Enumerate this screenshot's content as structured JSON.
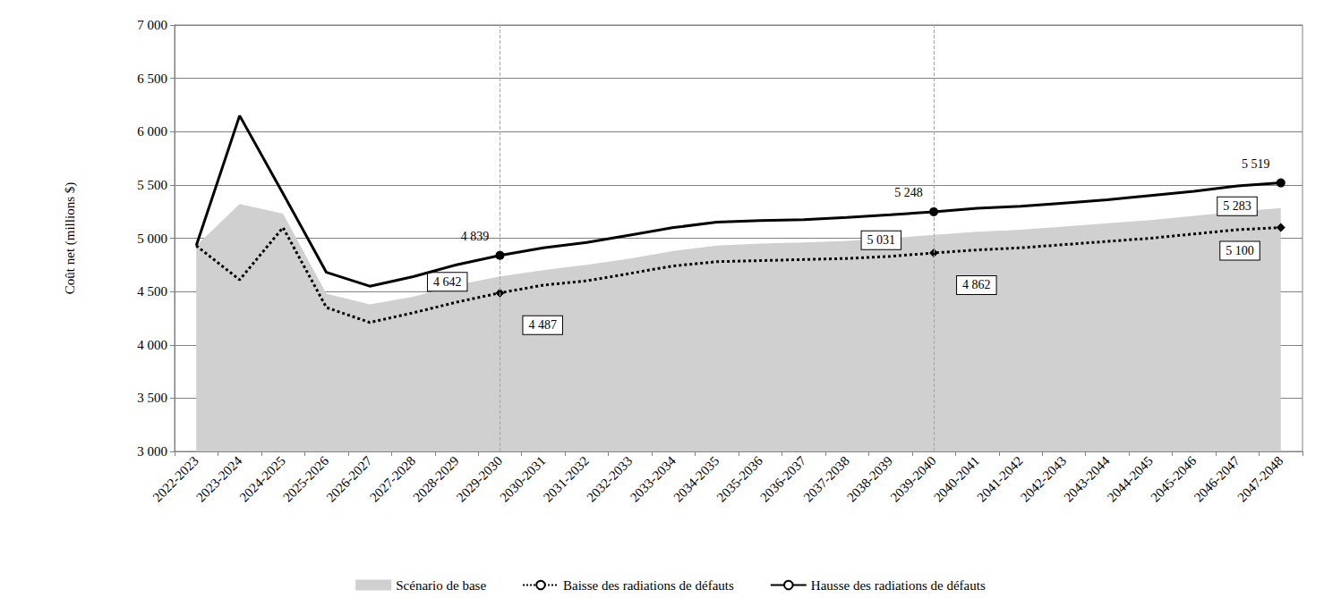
{
  "chart_data": {
    "type": "line",
    "y_label": "Coût net (millions $)",
    "categories": [
      "2022-2023",
      "2023-2024",
      "2024-2025",
      "2025-2026",
      "2026-2027",
      "2027-2028",
      "2028-2029",
      "2029-2030",
      "2030-2031",
      "2031-2032",
      "2032-2033",
      "2033-2034",
      "2034-2035",
      "2035-2036",
      "2036-2037",
      "2037-2038",
      "2038-2039",
      "2039-2040",
      "2040-2041",
      "2041-2042",
      "2042-2043",
      "2043-2044",
      "2044-2045",
      "2045-2046",
      "2046-2047",
      "2047-2048"
    ],
    "series": [
      {
        "name": "Scénario de base",
        "type": "area",
        "color": "#d0d0d0",
        "values": [
          4930,
          5320,
          5230,
          4480,
          4380,
          4450,
          4560,
          4642,
          4700,
          4750,
          4810,
          4880,
          4930,
          4950,
          4960,
          4975,
          5000,
          5031,
          5060,
          5080,
          5110,
          5140,
          5170,
          5210,
          5250,
          5283
        ],
        "value_labels": [
          null,
          null,
          null,
          null,
          null,
          null,
          null,
          "4 642",
          null,
          null,
          null,
          null,
          null,
          null,
          null,
          null,
          null,
          "5 031",
          null,
          null,
          null,
          null,
          null,
          null,
          null,
          "5 283"
        ]
      },
      {
        "name": "Baisse des radiations de défauts",
        "type": "line",
        "color": "#000000",
        "line_style": "dotted",
        "marker": "diamond",
        "values": [
          4930,
          4610,
          5100,
          4350,
          4210,
          4300,
          4400,
          4487,
          4560,
          4600,
          4670,
          4740,
          4780,
          4790,
          4800,
          4810,
          4830,
          4862,
          4890,
          4910,
          4940,
          4970,
          5000,
          5040,
          5080,
          5100
        ],
        "value_labels": [
          null,
          null,
          null,
          null,
          null,
          null,
          null,
          "4 487",
          null,
          null,
          null,
          null,
          null,
          null,
          null,
          null,
          null,
          "4 862",
          null,
          null,
          null,
          null,
          null,
          null,
          null,
          "5 100"
        ]
      },
      {
        "name": "Hausse des radiations de défauts",
        "type": "line",
        "color": "#000000",
        "line_style": "solid",
        "marker": "circle",
        "values": [
          4930,
          6150,
          5420,
          4680,
          4550,
          4640,
          4750,
          4839,
          4910,
          4960,
          5030,
          5100,
          5150,
          5165,
          5175,
          5195,
          5220,
          5248,
          5280,
          5300,
          5330,
          5360,
          5400,
          5440,
          5490,
          5519
        ],
        "value_labels": [
          null,
          null,
          null,
          null,
          null,
          null,
          null,
          "4 839",
          null,
          null,
          null,
          null,
          null,
          null,
          null,
          null,
          null,
          "5 248",
          null,
          null,
          null,
          null,
          null,
          null,
          null,
          "5 519"
        ]
      }
    ],
    "vlines": [
      "2029-2030",
      "2039-2040"
    ],
    "ylim": [
      3000,
      7000
    ],
    "yticks": [
      {
        "value": 3000,
        "label": "3 000"
      },
      {
        "value": 3500,
        "label": "3 500"
      },
      {
        "value": 4000,
        "label": "4 000"
      },
      {
        "value": 4500,
        "label": "4 500"
      },
      {
        "value": 5000,
        "label": "5 000"
      },
      {
        "value": 5500,
        "label": "5 500"
      },
      {
        "value": 6000,
        "label": "6 000"
      },
      {
        "value": 6500,
        "label": "6 500"
      },
      {
        "value": 7000,
        "label": "7 000"
      }
    ],
    "grid": true,
    "legend": "bottom"
  }
}
